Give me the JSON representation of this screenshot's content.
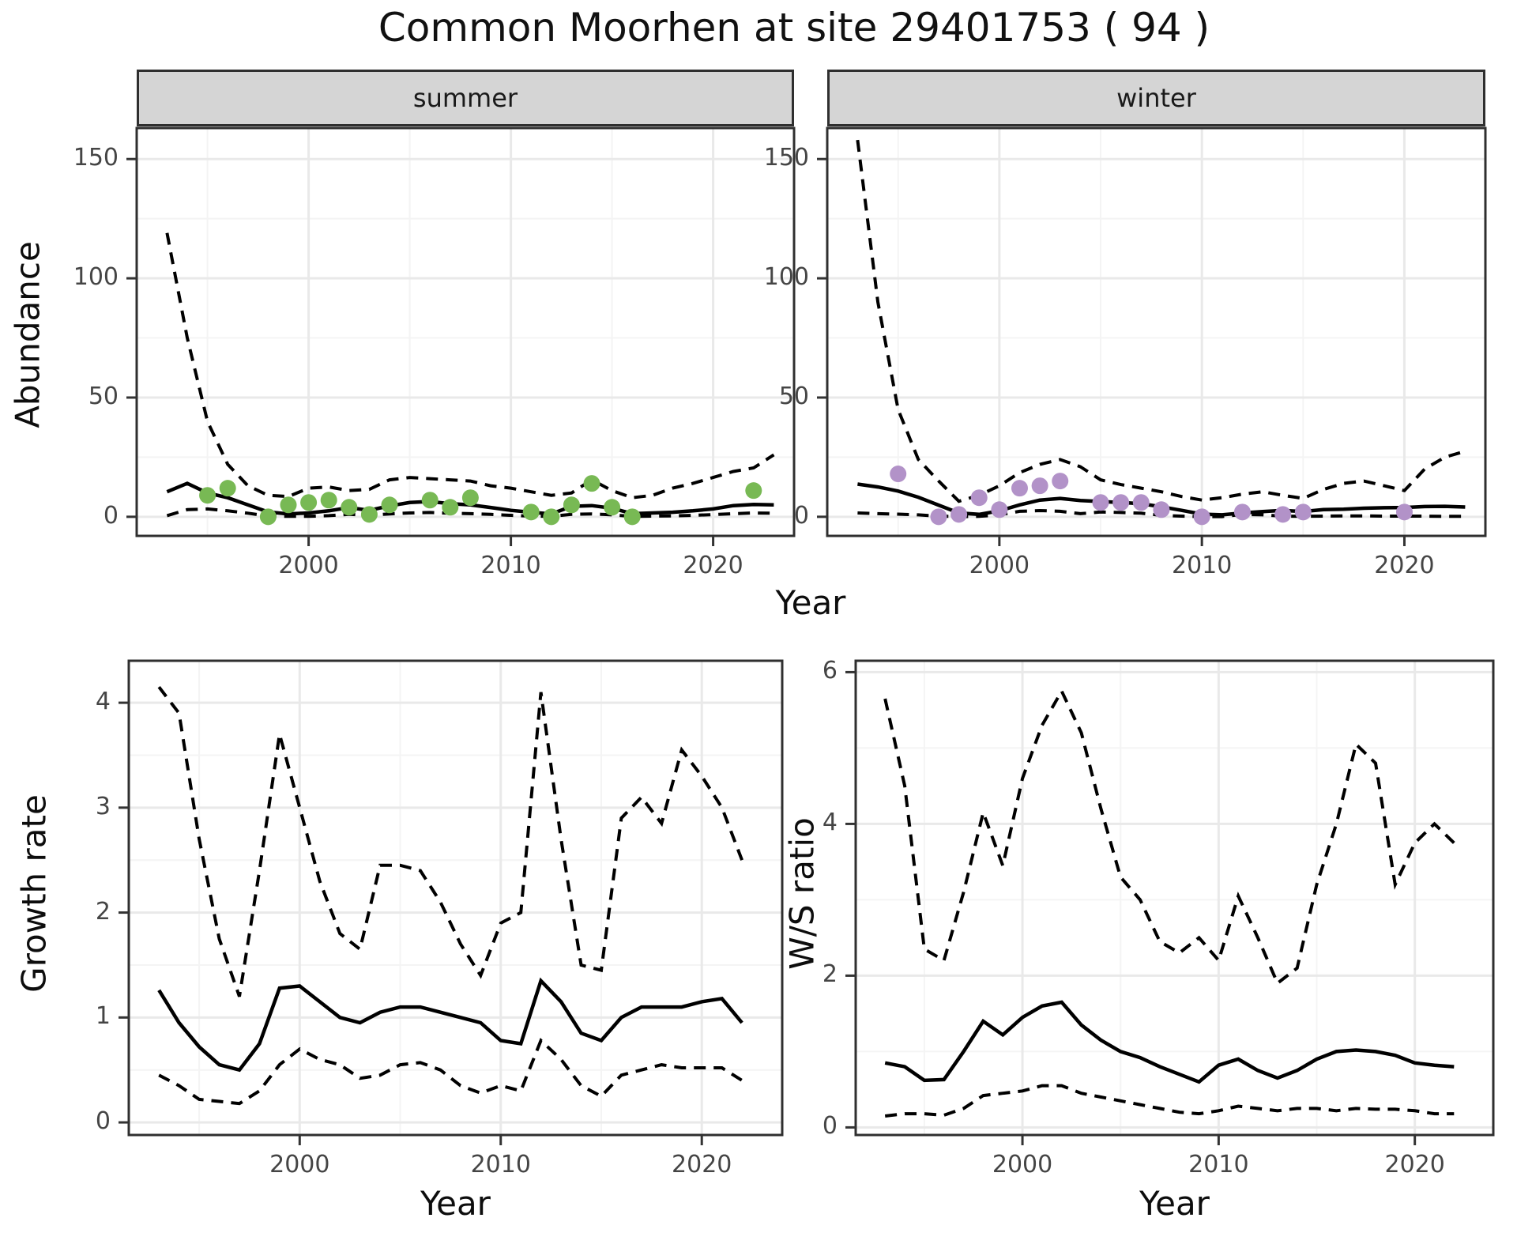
{
  "title": "Common Moorhen at site 29401753 ( 94 )",
  "colors": {
    "summer_point": "#78b954",
    "winter_point": "#b292c8",
    "line": "#000000",
    "grid_major": "#e9e9e9",
    "grid_minor": "#f4f4f4",
    "strip_bg": "#d5d5d5",
    "panel_border": "#2f2f2f",
    "axis_text": "#454545"
  },
  "labels": {
    "y_axis_top": "Abundance",
    "x_axis_top": "Year",
    "y_axis_bottom_left": "Growth rate",
    "x_axis_bottom_left": "Year",
    "y_axis_bottom_right": "W/S ratio",
    "x_axis_bottom_right": "Year"
  },
  "chart_data": [
    {
      "type": "line",
      "facet_label": "summer",
      "ylabel": "Abundance",
      "xlabel": "Year",
      "xlim": [
        1991.5,
        2024
      ],
      "ylim": [
        -8,
        163
      ],
      "x_ticks": [
        2000,
        2010,
        2020
      ],
      "x_minor": [
        1995,
        2005,
        2015
      ],
      "y_ticks": [
        0,
        50,
        100,
        150
      ],
      "y_minor": [
        25,
        75,
        125
      ],
      "x": [
        1993,
        1994,
        1995,
        1996,
        1997,
        1998,
        1999,
        2000,
        2001,
        2002,
        2003,
        2004,
        2005,
        2006,
        2007,
        2008,
        2009,
        2010,
        2011,
        2012,
        2013,
        2014,
        2015,
        2016,
        2017,
        2018,
        2019,
        2020,
        2021,
        2022,
        2023
      ],
      "series": [
        {
          "name": "median",
          "style": "solid",
          "values": [
            10.5,
            14,
            10,
            8,
            5,
            2,
            1.2,
            1.6,
            2.5,
            3.9,
            2.7,
            4.6,
            6,
            6.4,
            5.5,
            5,
            3.9,
            2.7,
            1.9,
            1.2,
            4.4,
            4.7,
            3.6,
            1.3,
            1.6,
            1.9,
            2.5,
            3.3,
            4.7,
            5.2,
            5
          ]
        },
        {
          "name": "upper CI",
          "style": "dashed",
          "values": [
            119,
            75,
            40,
            22,
            13,
            9,
            8.5,
            12,
            12.5,
            11,
            11.5,
            15.5,
            16.5,
            16,
            15.5,
            15,
            13,
            12,
            10.5,
            9,
            10,
            15.5,
            11,
            8,
            9,
            12,
            14,
            16.5,
            19,
            20.5,
            26
          ]
        },
        {
          "name": "lower CI",
          "style": "dashed",
          "values": [
            0.5,
            3,
            3.3,
            2.5,
            1.5,
            0.3,
            0.2,
            0.2,
            0.5,
            1,
            0.6,
            1.2,
            1.6,
            1.8,
            1.5,
            1.3,
            1,
            0.6,
            0.3,
            0.2,
            1,
            1.2,
            0.8,
            0.2,
            0.3,
            0.4,
            0.6,
            0.9,
            1.3,
            1.6,
            1.5
          ]
        }
      ],
      "points": [
        [
          1995,
          9
        ],
        [
          1996,
          12
        ],
        [
          1998,
          0
        ],
        [
          1999,
          5
        ],
        [
          2000,
          6
        ],
        [
          2001,
          7
        ],
        [
          2002,
          4
        ],
        [
          2003,
          1
        ],
        [
          2004,
          5
        ],
        [
          2006,
          7
        ],
        [
          2007,
          4
        ],
        [
          2008,
          8
        ],
        [
          2011,
          2
        ],
        [
          2012,
          0
        ],
        [
          2013,
          5
        ],
        [
          2014,
          14
        ],
        [
          2015,
          4
        ],
        [
          2016,
          0
        ],
        [
          2022,
          11
        ]
      ],
      "point_color": "#78b954"
    },
    {
      "type": "line",
      "facet_label": "winter",
      "ylabel": "Abundance",
      "xlabel": "Year",
      "xlim": [
        1991.5,
        2024
      ],
      "ylim": [
        -8,
        163
      ],
      "x_ticks": [
        2000,
        2010,
        2020
      ],
      "x_minor": [
        1995,
        2005,
        2015
      ],
      "y_ticks": [
        0,
        50,
        100,
        150
      ],
      "y_minor": [
        25,
        75,
        125
      ],
      "x": [
        1993,
        1994,
        1995,
        1996,
        1997,
        1998,
        1999,
        2000,
        2001,
        2002,
        2003,
        2004,
        2005,
        2006,
        2007,
        2008,
        2009,
        2010,
        2011,
        2012,
        2013,
        2014,
        2015,
        2016,
        2017,
        2018,
        2019,
        2020,
        2021,
        2022,
        2023
      ],
      "series": [
        {
          "name": "median",
          "style": "solid",
          "values": [
            13.7,
            12.5,
            10.8,
            8.2,
            4.9,
            1.6,
            1.0,
            2.5,
            5,
            7,
            7.7,
            6.8,
            6.4,
            6,
            5.5,
            4.2,
            2.7,
            1.1,
            0.8,
            1.6,
            2.2,
            2.7,
            2.2,
            3,
            3.2,
            3.6,
            3.8,
            3.9,
            4.3,
            4.4,
            4.1
          ]
        },
        {
          "name": "upper CI",
          "style": "dashed",
          "values": [
            158,
            90,
            45,
            24,
            15,
            6.5,
            9,
            13,
            18.5,
            22,
            24,
            21,
            15.5,
            13.5,
            12,
            10.5,
            8.5,
            7,
            8,
            9.5,
            10.5,
            9,
            7.7,
            11.5,
            14,
            15,
            13,
            11,
            20,
            25,
            27.5
          ]
        },
        {
          "name": "lower CI",
          "style": "dashed",
          "values": [
            1.6,
            1.3,
            1.1,
            0.8,
            0.3,
            0.1,
            0.2,
            0.8,
            2.3,
            2.6,
            2.3,
            1.3,
            2.0,
            1.8,
            1.5,
            0.6,
            0.3,
            0.1,
            0.1,
            1.0,
            0.8,
            0.3,
            0.2,
            0.3,
            0.4,
            0.4,
            0.3,
            0.3,
            0.3,
            0.2,
            0.2
          ]
        }
      ],
      "points": [
        [
          1995,
          18
        ],
        [
          1997,
          0
        ],
        [
          1998,
          1
        ],
        [
          1999,
          8
        ],
        [
          2000,
          3
        ],
        [
          2001,
          12
        ],
        [
          2002,
          13
        ],
        [
          2003,
          15
        ],
        [
          2005,
          6
        ],
        [
          2006,
          6
        ],
        [
          2007,
          6
        ],
        [
          2008,
          3
        ],
        [
          2010,
          0
        ],
        [
          2012,
          2
        ],
        [
          2014,
          1
        ],
        [
          2015,
          2
        ],
        [
          2020,
          2
        ]
      ],
      "point_color": "#b292c8"
    },
    {
      "type": "line",
      "facet_label": "",
      "ylabel": "Growth rate",
      "xlabel": "Year",
      "xlim": [
        1991.5,
        2024
      ],
      "ylim": [
        -0.12,
        4.4
      ],
      "x_ticks": [
        2000,
        2010,
        2020
      ],
      "x_minor": [
        1995,
        2005,
        2015
      ],
      "y_ticks": [
        0,
        1,
        2,
        3,
        4
      ],
      "y_minor": [
        0.5,
        1.5,
        2.5,
        3.5
      ],
      "x": [
        1993,
        1994,
        1995,
        1996,
        1997,
        1998,
        1999,
        2000,
        2001,
        2002,
        2003,
        2004,
        2005,
        2006,
        2007,
        2008,
        2009,
        2010,
        2011,
        2012,
        2013,
        2014,
        2015,
        2016,
        2017,
        2018,
        2019,
        2020,
        2021,
        2022
      ],
      "series": [
        {
          "name": "median",
          "style": "solid",
          "values": [
            1.26,
            0.95,
            0.72,
            0.55,
            0.5,
            0.75,
            1.28,
            1.3,
            1.15,
            1.0,
            0.95,
            1.05,
            1.1,
            1.1,
            1.05,
            1.0,
            0.95,
            0.78,
            0.75,
            1.35,
            1.15,
            0.85,
            0.78,
            1.0,
            1.1,
            1.1,
            1.1,
            1.15,
            1.18,
            0.95
          ]
        },
        {
          "name": "upper CI",
          "style": "dashed",
          "values": [
            4.15,
            3.9,
            2.7,
            1.75,
            1.2,
            2.4,
            3.7,
            3.0,
            2.3,
            1.8,
            1.65,
            2.45,
            2.45,
            2.4,
            2.1,
            1.7,
            1.4,
            1.9,
            2.0,
            4.1,
            2.7,
            1.5,
            1.45,
            2.9,
            3.1,
            2.85,
            3.55,
            3.3,
            3.0,
            2.5
          ]
        },
        {
          "name": "lower CI",
          "style": "dashed",
          "values": [
            0.45,
            0.35,
            0.22,
            0.2,
            0.18,
            0.3,
            0.55,
            0.7,
            0.6,
            0.55,
            0.42,
            0.45,
            0.55,
            0.57,
            0.5,
            0.35,
            0.28,
            0.35,
            0.3,
            0.78,
            0.6,
            0.35,
            0.25,
            0.45,
            0.5,
            0.55,
            0.52,
            0.52,
            0.52,
            0.4
          ]
        }
      ],
      "points": [],
      "point_color": "#000000"
    },
    {
      "type": "line",
      "facet_label": "",
      "ylabel": "W/S ratio",
      "xlabel": "Year",
      "xlim": [
        1991.5,
        2024
      ],
      "ylim": [
        -0.1,
        6.15
      ],
      "x_ticks": [
        2000,
        2010,
        2020
      ],
      "x_minor": [
        1995,
        2005,
        2015
      ],
      "y_ticks": [
        0,
        2,
        4,
        6
      ],
      "y_minor": [
        1,
        3,
        5
      ],
      "x": [
        1993,
        1994,
        1995,
        1996,
        1997,
        1998,
        1999,
        2000,
        2001,
        2002,
        2003,
        2004,
        2005,
        2006,
        2007,
        2008,
        2009,
        2010,
        2011,
        2012,
        2013,
        2014,
        2015,
        2016,
        2017,
        2018,
        2019,
        2020,
        2021,
        2022
      ],
      "series": [
        {
          "name": "median",
          "style": "solid",
          "values": [
            0.85,
            0.8,
            0.62,
            0.63,
            1.0,
            1.4,
            1.22,
            1.45,
            1.6,
            1.65,
            1.35,
            1.15,
            1.0,
            0.92,
            0.8,
            0.7,
            0.6,
            0.82,
            0.9,
            0.75,
            0.65,
            0.75,
            0.9,
            1.0,
            1.02,
            1.0,
            0.95,
            0.85,
            0.82,
            0.8
          ]
        },
        {
          "name": "upper CI",
          "style": "dashed",
          "values": [
            5.65,
            4.5,
            2.35,
            2.2,
            3.1,
            4.15,
            3.45,
            4.6,
            5.3,
            5.75,
            5.2,
            4.2,
            3.3,
            3.0,
            2.45,
            2.3,
            2.5,
            2.2,
            3.05,
            2.5,
            1.9,
            2.1,
            3.2,
            4.0,
            5.05,
            4.8,
            3.2,
            3.75,
            4.0,
            3.75
          ]
        },
        {
          "name": "lower CI",
          "style": "dashed",
          "values": [
            0.15,
            0.18,
            0.18,
            0.16,
            0.25,
            0.42,
            0.45,
            0.48,
            0.55,
            0.55,
            0.45,
            0.4,
            0.35,
            0.3,
            0.25,
            0.2,
            0.18,
            0.22,
            0.28,
            0.25,
            0.22,
            0.25,
            0.25,
            0.22,
            0.25,
            0.24,
            0.24,
            0.22,
            0.18,
            0.18
          ]
        }
      ],
      "points": [],
      "point_color": "#000000"
    }
  ]
}
